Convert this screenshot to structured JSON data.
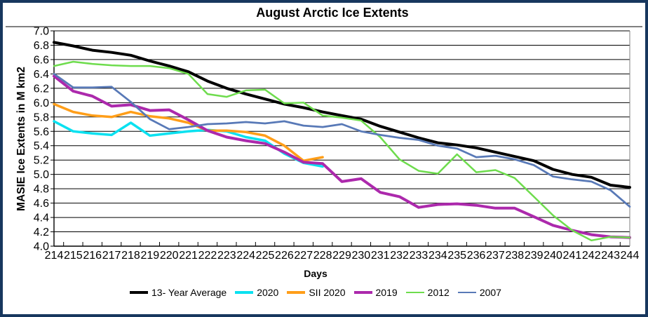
{
  "window": {
    "border_color": "#17375E",
    "background": "#FFFFFF",
    "gridline_color": "#000000",
    "plot_right_border_color": "#808080"
  },
  "chart_data": {
    "type": "line",
    "title": "August Arctic Ice Extents",
    "xlabel": "Days",
    "ylabel": "MASIE Ice Extents in M km2",
    "x": [
      214,
      215,
      216,
      217,
      218,
      219,
      220,
      221,
      222,
      223,
      224,
      225,
      226,
      227,
      228,
      229,
      230,
      231,
      232,
      233,
      234,
      235,
      236,
      237,
      238,
      239,
      240,
      241,
      242,
      243,
      244
    ],
    "x_tick_labels": [
      "214",
      "215",
      "216",
      "217",
      "218",
      "219",
      "220",
      "221",
      "222",
      "223",
      "224",
      "225",
      "226",
      "227",
      "228",
      "229",
      "230",
      "231",
      "232",
      "233",
      "234",
      "235",
      "236",
      "237",
      "238",
      "239",
      "240",
      "241",
      "242",
      "243",
      "244"
    ],
    "y_tick_labels": [
      "7.0",
      "6.8",
      "6.6",
      "6.4",
      "6.2",
      "6.0",
      "5.8",
      "5.6",
      "5.4",
      "5.2",
      "5.0",
      "4.8",
      "4.6",
      "4.4",
      "4.2",
      "4.0"
    ],
    "ylim": [
      4.0,
      7.0
    ],
    "ytick_step": 0.2,
    "grid": "horizontal",
    "legend_position": "bottom",
    "series": [
      {
        "name": "13- Year Average",
        "color": "#000000",
        "stroke_width": 4,
        "values": [
          6.84,
          6.79,
          6.73,
          6.7,
          6.66,
          6.58,
          6.51,
          6.43,
          6.3,
          6.2,
          6.12,
          6.05,
          5.98,
          5.93,
          5.87,
          5.82,
          5.77,
          5.67,
          5.59,
          5.51,
          5.44,
          5.41,
          5.37,
          5.31,
          5.25,
          5.19,
          5.07,
          5.0,
          4.96,
          4.85,
          4.82
        ]
      },
      {
        "name": "2020",
        "color": "#0AE1F0",
        "stroke_width": 3.5,
        "values": [
          5.74,
          5.6,
          5.57,
          5.55,
          5.72,
          5.54,
          5.57,
          5.6,
          5.62,
          5.6,
          5.52,
          5.47,
          5.29,
          5.16,
          5.11
        ]
      },
      {
        "name": "SII 2020",
        "color": "#FF9E19",
        "stroke_width": 3.5,
        "values": [
          5.98,
          5.87,
          5.82,
          5.8,
          5.87,
          5.81,
          5.78,
          5.72,
          5.61,
          5.61,
          5.59,
          5.54,
          5.4,
          5.19,
          5.24
        ]
      },
      {
        "name": "2019",
        "color": "#AC29AC",
        "stroke_width": 4,
        "values": [
          6.37,
          6.16,
          6.09,
          5.95,
          5.97,
          5.89,
          5.9,
          5.76,
          5.61,
          5.52,
          5.47,
          5.43,
          5.31,
          5.17,
          5.15,
          4.9,
          4.94,
          4.75,
          4.69,
          4.54,
          4.58,
          4.59,
          4.57,
          4.53,
          4.53,
          4.41,
          4.29,
          4.22,
          4.16,
          4.13,
          4.12
        ]
      },
      {
        "name": "2012",
        "color": "#6EDC4D",
        "stroke_width": 2.5,
        "values": [
          6.51,
          6.57,
          6.54,
          6.52,
          6.51,
          6.51,
          6.48,
          6.4,
          6.12,
          6.08,
          6.17,
          6.18,
          5.99,
          6.0,
          5.82,
          5.79,
          5.75,
          5.52,
          5.21,
          5.05,
          5.01,
          5.28,
          5.03,
          5.06,
          4.95,
          4.69,
          4.43,
          4.22,
          4.08,
          4.13,
          4.12
        ]
      },
      {
        "name": "2007",
        "color": "#5879B7",
        "stroke_width": 2.75,
        "values": [
          6.4,
          6.21,
          6.21,
          6.22,
          6.01,
          5.77,
          5.63,
          5.66,
          5.7,
          5.71,
          5.73,
          5.71,
          5.74,
          5.68,
          5.66,
          5.7,
          5.6,
          5.55,
          5.51,
          5.48,
          5.4,
          5.36,
          5.24,
          5.26,
          5.21,
          5.13,
          4.97,
          4.93,
          4.9,
          4.78,
          4.55
        ]
      }
    ]
  }
}
